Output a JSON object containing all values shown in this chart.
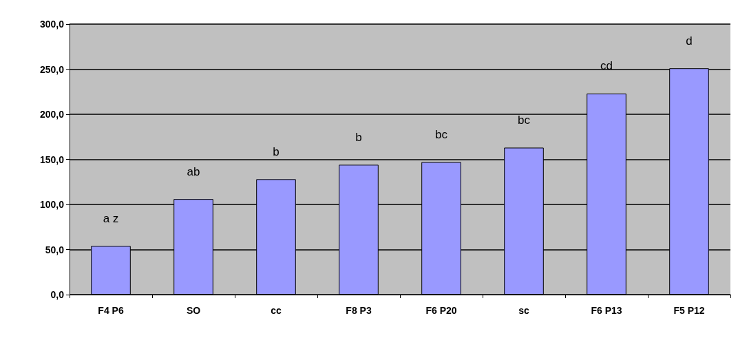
{
  "chart_data": {
    "type": "bar",
    "categories": [
      "F4 P6",
      "SO",
      "cc",
      "F8 P3",
      "F6 P20",
      "sc",
      "F6 P13",
      "F5 P12"
    ],
    "values": [
      54,
      106,
      128,
      144,
      147,
      163,
      223,
      251
    ],
    "color": "#9999ff",
    "ylim": [
      0,
      300
    ],
    "yticks": [
      {
        "value": 0,
        "label": "0,0"
      },
      {
        "value": 50,
        "label": "50,0"
      },
      {
        "value": 100,
        "label": "100,0"
      },
      {
        "value": 150,
        "label": "150,0"
      },
      {
        "value": 200,
        "label": "200,0"
      },
      {
        "value": 250,
        "label": "250,0"
      },
      {
        "value": 300,
        "label": "300,0"
      }
    ],
    "grid": "y",
    "annotations": [
      "a z",
      "ab",
      "b",
      "b",
      "bc",
      "bc",
      "cd",
      "d"
    ]
  }
}
